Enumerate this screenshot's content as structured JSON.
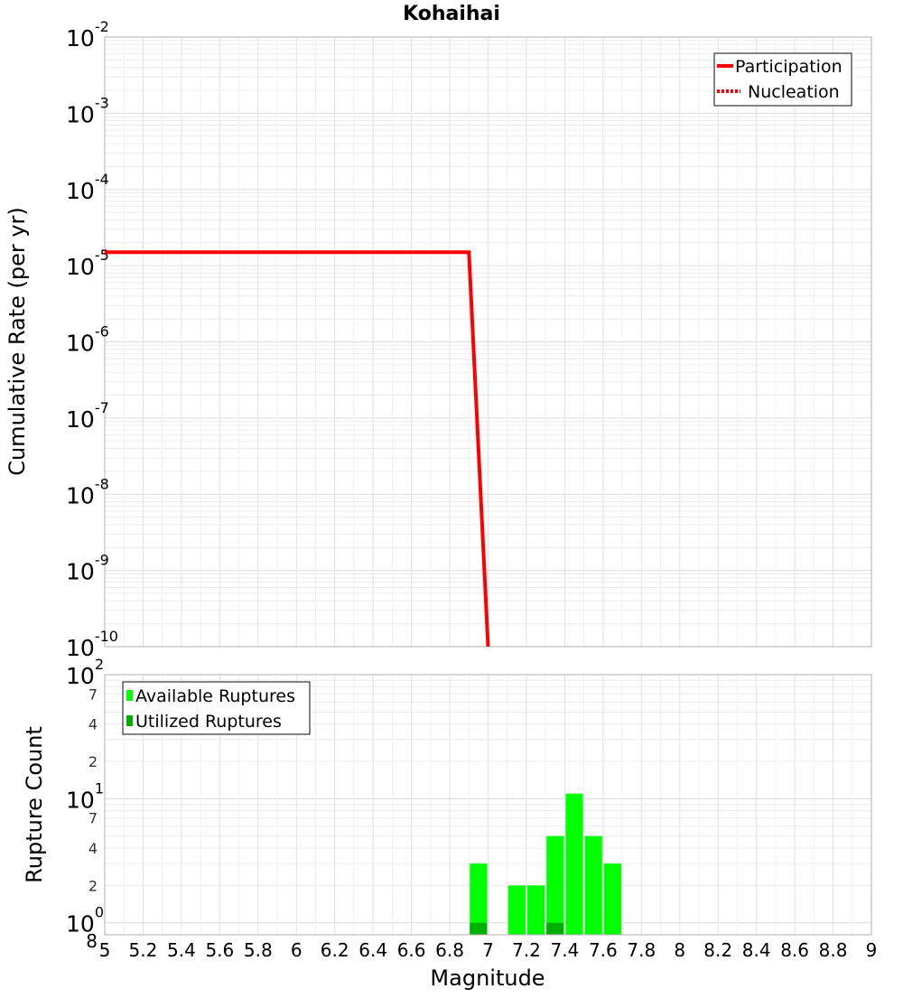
{
  "chart_data": [
    {
      "type": "line",
      "title": "Kohaihai",
      "ylabel": "Cumulative Rate (per yr)",
      "xlabel": "",
      "yscale": "log",
      "xlim": [
        5,
        9
      ],
      "ylim": [
        1e-10,
        0.01
      ],
      "y_tick_exponents": [
        -2,
        -3,
        -4,
        -5,
        -6,
        -7,
        -8,
        -9,
        -10
      ],
      "grid": true,
      "legend_position": "top-right",
      "series": [
        {
          "name": "Participation",
          "style": "solid",
          "color": "#ff0000",
          "x": [
            5.0,
            6.9,
            7.0
          ],
          "y": [
            1.5e-05,
            1.5e-05,
            1e-10
          ]
        },
        {
          "name": "Nucleation",
          "style": "dotted",
          "color": "#ff0000",
          "x": [
            5.0,
            6.9,
            7.0
          ],
          "y": [
            1.5e-05,
            1.5e-05,
            1e-10
          ]
        }
      ]
    },
    {
      "type": "bar",
      "title": "",
      "ylabel": "Rupture Count",
      "xlabel": "Magnitude",
      "yscale": "log",
      "xlim": [
        5,
        9
      ],
      "ylim": [
        0.8,
        100
      ],
      "y_major_labels": [
        {
          "value": 1,
          "base": "10",
          "exp": "0"
        },
        {
          "value": 10,
          "base": "10",
          "exp": "1"
        },
        {
          "value": 100,
          "base": "10",
          "exp": "2"
        }
      ],
      "y_minor_labels": [
        "8",
        "2",
        "4",
        "7",
        "2",
        "4",
        "7"
      ],
      "y_minor_values": [
        0.8,
        2,
        4,
        7,
        20,
        40,
        70
      ],
      "x_ticks": [
        "5",
        "5.2",
        "5.4",
        "5.6",
        "5.8",
        "6",
        "6.2",
        "6.4",
        "6.6",
        "6.8",
        "7",
        "7.2",
        "7.4",
        "7.6",
        "7.8",
        "8",
        "8.2",
        "8.4",
        "8.6",
        "8.8",
        "9"
      ],
      "grid": true,
      "legend_position": "top-left",
      "bin_width": 0.1,
      "series": [
        {
          "name": "Available Ruptures",
          "color": "#00ff00",
          "x": [
            6.95,
            7.15,
            7.25,
            7.35,
            7.45,
            7.55,
            7.65
          ],
          "values": [
            3,
            2,
            2,
            5,
            11,
            5,
            3
          ]
        },
        {
          "name": "Utilized Ruptures",
          "color": "#00b000",
          "x": [
            6.95,
            7.35
          ],
          "values": [
            1,
            1
          ]
        }
      ]
    }
  ]
}
